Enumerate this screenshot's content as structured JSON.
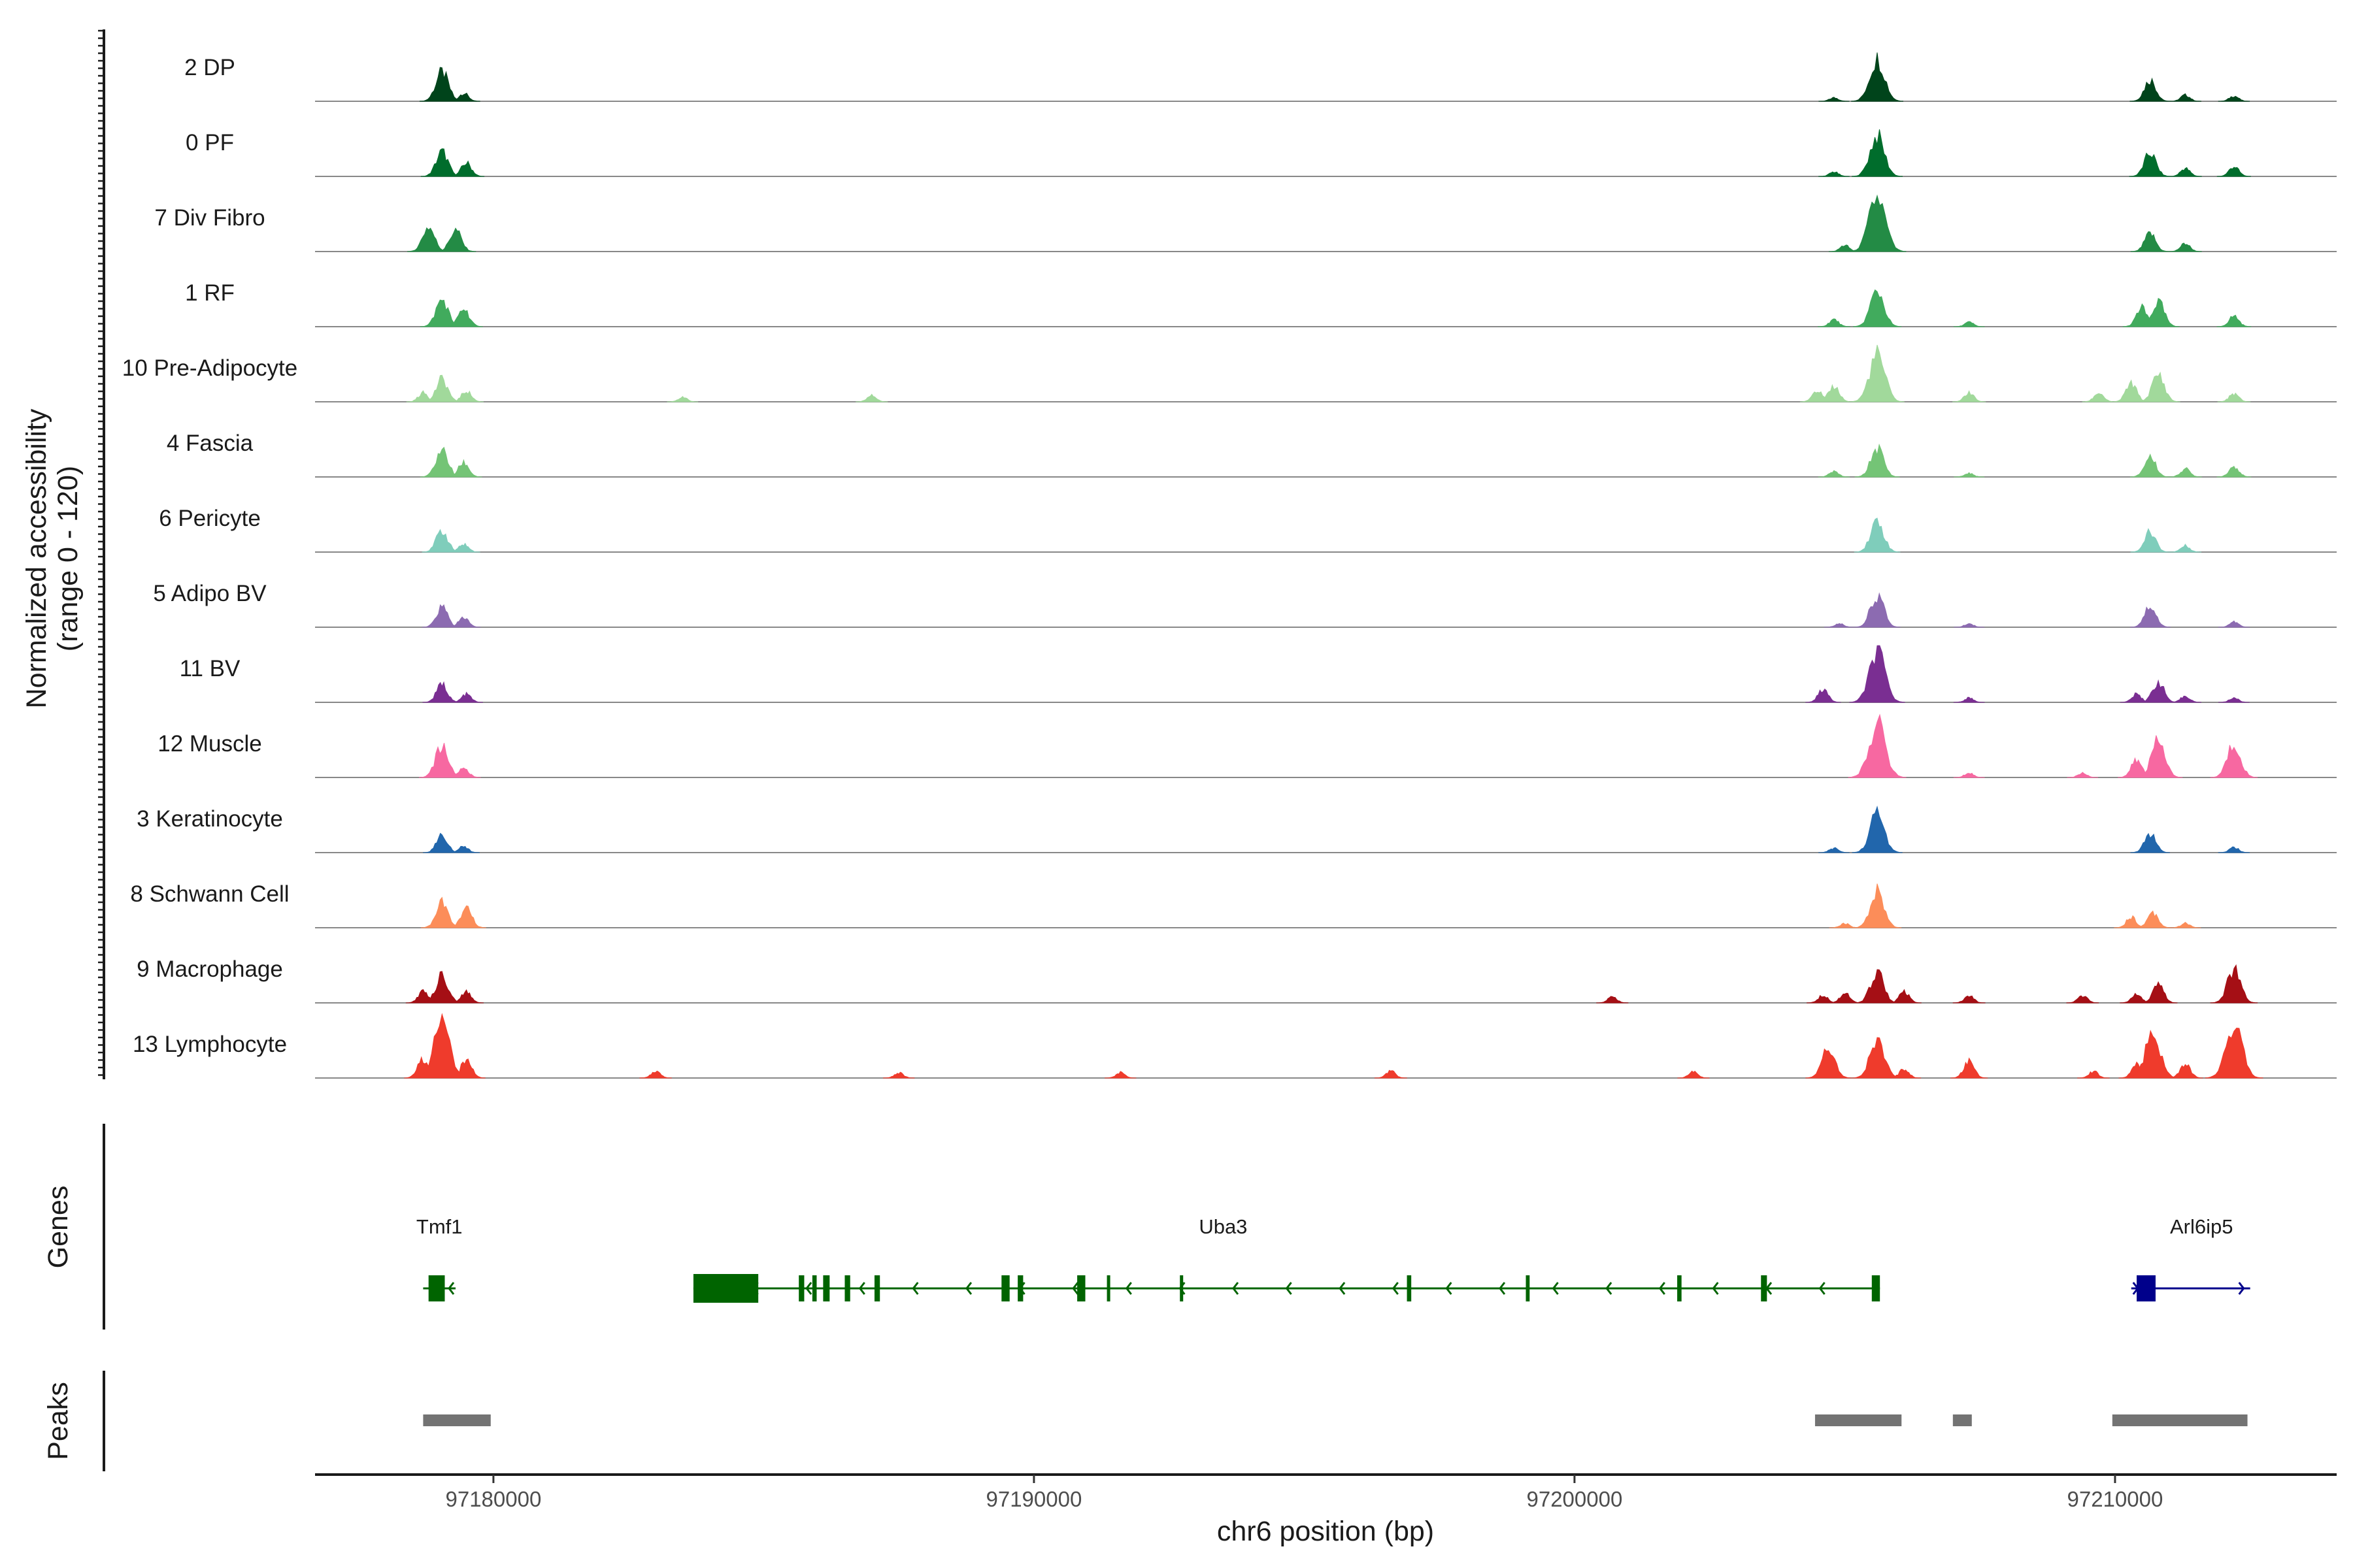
{
  "chart_data": {
    "type": "area",
    "subtype": "genome coverage tracks",
    "y_axis_title": [
      "Normalized accessibility",
      "(range 0 - 120)"
    ],
    "ylim": [
      0,
      120
    ],
    "xlabel": "chr6 position (bp)",
    "xlim": [
      97176700,
      97214100
    ],
    "x_ticks": [
      97180000,
      97190000,
      97200000,
      97210000
    ],
    "x_tick_labels": [
      "97180000",
      "97190000",
      "97200000",
      "97210000"
    ],
    "genes_label": "Genes",
    "peaks_label": "Peaks",
    "tracks": [
      {
        "name": "2 DP",
        "color": "#00441b",
        "peaks": [
          [
            97179050,
            65
          ],
          [
            97179450,
            18
          ],
          [
            97204800,
            8
          ],
          [
            97205600,
            95
          ],
          [
            97210650,
            48
          ],
          [
            97211300,
            14
          ],
          [
            97212200,
            12
          ]
        ]
      },
      {
        "name": "0 PF",
        "color": "#006d2c",
        "peaks": [
          [
            97179050,
            55
          ],
          [
            97179500,
            30
          ],
          [
            97204800,
            10
          ],
          [
            97205600,
            90
          ],
          [
            97210650,
            52
          ],
          [
            97211300,
            18
          ],
          [
            97212200,
            22
          ]
        ]
      },
      {
        "name": "7 Div Fibro",
        "color": "#238b45",
        "peaks": [
          [
            97178800,
            55
          ],
          [
            97179300,
            48
          ],
          [
            97205000,
            14
          ],
          [
            97205600,
            120
          ],
          [
            97210650,
            40
          ],
          [
            97211300,
            18
          ]
        ]
      },
      {
        "name": "1 RF",
        "color": "#41ab5d",
        "peaks": [
          [
            97179050,
            60
          ],
          [
            97179450,
            40
          ],
          [
            97204800,
            16
          ],
          [
            97205600,
            80
          ],
          [
            97207300,
            10
          ],
          [
            97210500,
            42
          ],
          [
            97210800,
            55
          ],
          [
            97212200,
            24
          ]
        ]
      },
      {
        "name": "10 Pre-Adipocyte",
        "color": "#a1d99b",
        "peaks": [
          [
            97178700,
            20
          ],
          [
            97179050,
            50
          ],
          [
            97179500,
            24
          ],
          [
            97183500,
            10
          ],
          [
            97187000,
            14
          ],
          [
            97204500,
            28
          ],
          [
            97204800,
            35
          ],
          [
            97205600,
            105
          ],
          [
            97207300,
            20
          ],
          [
            97209700,
            20
          ],
          [
            97210300,
            40
          ],
          [
            97210800,
            60
          ],
          [
            97212200,
            18
          ]
        ]
      },
      {
        "name": "4 Fascia",
        "color": "#74c476",
        "peaks": [
          [
            97179050,
            60
          ],
          [
            97179450,
            32
          ],
          [
            97204800,
            12
          ],
          [
            97205600,
            65
          ],
          [
            97207300,
            8
          ],
          [
            97210650,
            45
          ],
          [
            97211300,
            18
          ],
          [
            97212200,
            24
          ]
        ]
      },
      {
        "name": "6 Pericyte",
        "color": "#7fcdbb",
        "peaks": [
          [
            97179050,
            48
          ],
          [
            97179450,
            18
          ],
          [
            97205600,
            70
          ],
          [
            97210650,
            45
          ],
          [
            97211300,
            14
          ]
        ]
      },
      {
        "name": "5 Adipo BV",
        "color": "#8c6bb1",
        "peaks": [
          [
            97179050,
            45
          ],
          [
            97179450,
            22
          ],
          [
            97204900,
            8
          ],
          [
            97205600,
            72
          ],
          [
            97207300,
            8
          ],
          [
            97210650,
            48
          ],
          [
            97212200,
            12
          ]
        ]
      },
      {
        "name": "11 BV",
        "color": "#7a2e92",
        "peaks": [
          [
            97179050,
            40
          ],
          [
            97179500,
            18
          ],
          [
            97204600,
            28
          ],
          [
            97205600,
            110
          ],
          [
            97207300,
            10
          ],
          [
            97210400,
            18
          ],
          [
            97210800,
            46
          ],
          [
            97211300,
            14
          ],
          [
            97212200,
            10
          ]
        ]
      },
      {
        "name": "12 Muscle",
        "color": "#f768a1",
        "peaks": [
          [
            97179050,
            70
          ],
          [
            97179450,
            22
          ],
          [
            97205600,
            120
          ],
          [
            97207300,
            10
          ],
          [
            97209400,
            10
          ],
          [
            97210400,
            38
          ],
          [
            97210800,
            80
          ],
          [
            97212200,
            75
          ]
        ]
      },
      {
        "name": "3 Keratinocyte",
        "color": "#2166ac",
        "peaks": [
          [
            97179050,
            40
          ],
          [
            97179450,
            14
          ],
          [
            97204800,
            10
          ],
          [
            97205600,
            88
          ],
          [
            97210650,
            42
          ],
          [
            97212200,
            12
          ]
        ]
      },
      {
        "name": "8 Schwann Cell",
        "color": "#fc8d59",
        "peaks": [
          [
            97179050,
            55
          ],
          [
            97179500,
            42
          ],
          [
            97205000,
            10
          ],
          [
            97205600,
            80
          ],
          [
            97210300,
            24
          ],
          [
            97210700,
            35
          ],
          [
            97211300,
            10
          ]
        ]
      },
      {
        "name": "9 Macrophage",
        "color": "#a50f15",
        "peaks": [
          [
            97178700,
            25
          ],
          [
            97179050,
            60
          ],
          [
            97179500,
            24
          ],
          [
            97200700,
            14
          ],
          [
            97204600,
            18
          ],
          [
            97205000,
            22
          ],
          [
            97205600,
            70
          ],
          [
            97206100,
            24
          ],
          [
            97207300,
            16
          ],
          [
            97209400,
            16
          ],
          [
            97210400,
            20
          ],
          [
            97210800,
            40
          ],
          [
            97212200,
            75
          ]
        ]
      },
      {
        "name": "13 Lymphocyte",
        "color": "#ef3b2c",
        "peaks": [
          [
            97178700,
            40
          ],
          [
            97179050,
            120
          ],
          [
            97179500,
            40
          ],
          [
            97183000,
            15
          ],
          [
            97187500,
            12
          ],
          [
            97191600,
            12
          ],
          [
            97196600,
            16
          ],
          [
            97202200,
            14
          ],
          [
            97204700,
            70
          ],
          [
            97205600,
            88
          ],
          [
            97206100,
            20
          ],
          [
            97207300,
            36
          ],
          [
            97209600,
            15
          ],
          [
            97210400,
            30
          ],
          [
            97210700,
            100
          ],
          [
            97211300,
            30
          ],
          [
            97212200,
            120
          ]
        ]
      }
    ],
    "genes": [
      {
        "name": "Tmf1",
        "color": "#006400",
        "strand": "-",
        "start": 97178700,
        "end": 97179300,
        "exons": [
          [
            97178800,
            97179100
          ]
        ]
      },
      {
        "name": "Uba3",
        "color": "#006400",
        "strand": "-",
        "start": 97183700,
        "end": 97205650,
        "exons": [
          [
            97183700,
            97184900
          ],
          [
            97185650,
            97185750
          ],
          [
            97185900,
            97185980
          ],
          [
            97186100,
            97186220
          ],
          [
            97186500,
            97186600
          ],
          [
            97187050,
            97187150
          ],
          [
            97189400,
            97189550
          ],
          [
            97189700,
            97189800
          ],
          [
            97190800,
            97190950
          ],
          [
            97191350,
            97191400
          ],
          [
            97192700,
            97192760
          ],
          [
            97196900,
            97196980
          ],
          [
            97199100,
            97199170
          ],
          [
            97201900,
            97201980
          ],
          [
            97203450,
            97203560
          ],
          [
            97205500,
            97205650
          ]
        ]
      },
      {
        "name": "Arl6ip5",
        "color": "#00008b",
        "strand": "+",
        "start": 97210300,
        "end": 97212500,
        "exons": [
          [
            97210400,
            97210750
          ]
        ]
      }
    ],
    "peak_regions": [
      [
        97178700,
        97179950
      ],
      [
        97204450,
        97206050
      ],
      [
        97207000,
        97207350
      ],
      [
        97209950,
        97212450
      ]
    ]
  }
}
